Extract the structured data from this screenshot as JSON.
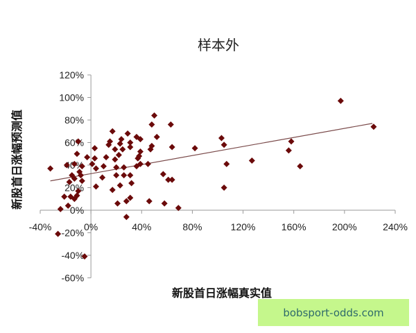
{
  "chart_data": {
    "type": "scatter",
    "title": "样本外",
    "xlabel": "新股首日涨幅真实值",
    "ylabel": "新股首日涨幅预测值",
    "xlim": [
      -40,
      240
    ],
    "ylim": [
      -60,
      120
    ],
    "x_ticks": [
      "-40%",
      "0%",
      "40%",
      "80%",
      "120%",
      "160%",
      "200%",
      "240%"
    ],
    "y_ticks": [
      "120%",
      "100%",
      "80%",
      "60%",
      "40%",
      "20%",
      "0%",
      "-20%",
      "-40%",
      "-60%"
    ],
    "grid": false,
    "marker_color": "#6b0a0a",
    "trendline": {
      "type": "linear",
      "x": [
        -32,
        222
      ],
      "y": [
        26,
        77
      ],
      "color": "#7a4a4a"
    },
    "points": [
      [
        -32,
        37
      ],
      [
        -26,
        -21
      ],
      [
        -5,
        -41
      ],
      [
        -24,
        1
      ],
      [
        -21,
        12
      ],
      [
        -18,
        4
      ],
      [
        -17,
        25
      ],
      [
        -19,
        40
      ],
      [
        -15,
        31
      ],
      [
        -10,
        61
      ],
      [
        -11,
        50
      ],
      [
        -13,
        28
      ],
      [
        -16,
        12
      ],
      [
        -13,
        10
      ],
      [
        -11,
        13
      ],
      [
        -10,
        17
      ],
      [
        -13,
        41
      ],
      [
        -9,
        34
      ],
      [
        -7,
        39
      ],
      [
        -8,
        31
      ],
      [
        -7,
        26
      ],
      [
        -3,
        47
      ],
      [
        1,
        41
      ],
      [
        3,
        55
      ],
      [
        3,
        46
      ],
      [
        4,
        37
      ],
      [
        4,
        21
      ],
      [
        9,
        29
      ],
      [
        10,
        39
      ],
      [
        12,
        47
      ],
      [
        14,
        58
      ],
      [
        15,
        61
      ],
      [
        17,
        70
      ],
      [
        17,
        18
      ],
      [
        19,
        54
      ],
      [
        19,
        45
      ],
      [
        20,
        38
      ],
      [
        20,
        31
      ],
      [
        21,
        6
      ],
      [
        22,
        49
      ],
      [
        23,
        59
      ],
      [
        24,
        63
      ],
      [
        25,
        54
      ],
      [
        26,
        38
      ],
      [
        26,
        31
      ],
      [
        23,
        22
      ],
      [
        28,
        -6
      ],
      [
        28,
        8
      ],
      [
        31,
        11
      ],
      [
        32,
        24
      ],
      [
        31,
        31
      ],
      [
        29,
        68
      ],
      [
        31,
        60
      ],
      [
        31,
        56
      ],
      [
        36,
        39
      ],
      [
        37,
        46
      ],
      [
        38,
        48
      ],
      [
        36,
        65
      ],
      [
        39,
        63
      ],
      [
        39,
        52
      ],
      [
        39,
        41
      ],
      [
        45,
        41
      ],
      [
        46,
        8
      ],
      [
        47,
        54
      ],
      [
        48,
        57
      ],
      [
        48,
        76
      ],
      [
        50,
        84
      ],
      [
        52,
        65
      ],
      [
        57,
        32
      ],
      [
        58,
        6
      ],
      [
        61,
        27
      ],
      [
        64,
        27
      ],
      [
        63,
        76
      ],
      [
        64,
        56
      ],
      [
        69,
        2
      ],
      [
        82,
        55
      ],
      [
        103,
        64
      ],
      [
        105,
        58
      ],
      [
        107,
        41
      ],
      [
        105,
        20
      ],
      [
        127,
        44
      ],
      [
        156,
        53
      ],
      [
        158,
        61
      ],
      [
        165,
        39
      ],
      [
        197,
        97
      ],
      [
        223,
        74
      ]
    ]
  },
  "watermark": {
    "text": "bobsport-odds.com",
    "bg": "#c5f78c"
  }
}
